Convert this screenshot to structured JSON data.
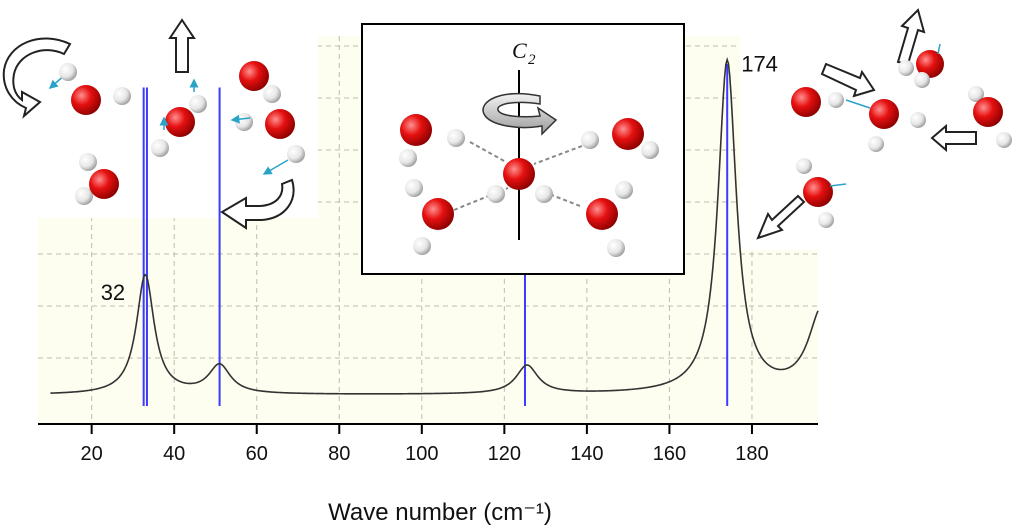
{
  "chart_data": {
    "type": "line",
    "xlabel": "Wave number (cm⁻¹)",
    "xlim": [
      7,
      196
    ],
    "xticks": [
      20,
      40,
      60,
      80,
      100,
      120,
      140,
      160,
      180
    ],
    "ylim": [
      0,
      1
    ],
    "grid": true,
    "background_color": "#fdfdf0",
    "line_color": "#333333",
    "stick_color": "#3b3bff",
    "sticks": [
      {
        "x": 32.6,
        "height": 0.93
      },
      {
        "x": 33.4,
        "height": 0.93
      },
      {
        "x": 51,
        "height": 0.93
      },
      {
        "x": 125,
        "height": 0.93
      },
      {
        "x": 174,
        "height": 1.0
      }
    ],
    "baseline": 0.015,
    "peaks": [
      {
        "x": 33,
        "amp": 0.355,
        "gamma": 2.6
      },
      {
        "x": 51,
        "amp": 0.085,
        "gamma": 3.2
      },
      {
        "x": 125.5,
        "amp": 0.085,
        "gamma": 3.2
      },
      {
        "x": 174,
        "amp": 0.99,
        "gamma": 2.7
      },
      {
        "x": 197,
        "amp": 0.25,
        "gamma": 4
      }
    ],
    "annotations": [
      {
        "text": "32",
        "x": 32
      },
      {
        "text": "174",
        "x": 174
      }
    ]
  },
  "inset": {
    "axis_label": "C",
    "axis_subscript": "2"
  }
}
